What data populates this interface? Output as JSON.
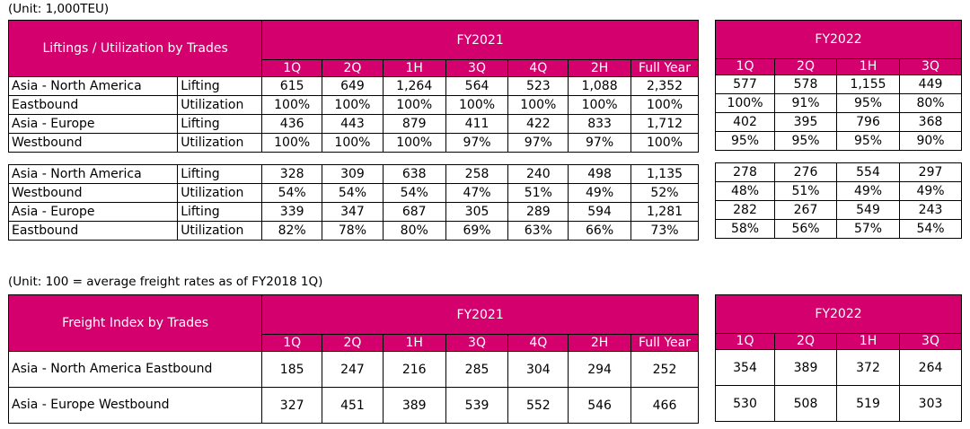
{
  "lift": {
    "unit": "(Unit: 1,000TEU)",
    "title": "Liftings / Utilization by Trades",
    "fy2021": "FY2021",
    "fy2022": "FY2022",
    "cols2021": [
      "1Q",
      "2Q",
      "1H",
      "3Q",
      "4Q",
      "2H",
      "Full Year"
    ],
    "cols2022": [
      "1Q",
      "2Q",
      "1H",
      "3Q"
    ],
    "rows": [
      {
        "trade": "Asia - North America",
        "metric": "Lifting",
        "v21": [
          "615",
          "649",
          "1,264",
          "564",
          "523",
          "1,088",
          "2,352"
        ],
        "v22": [
          "577",
          "578",
          "1,155",
          "449"
        ]
      },
      {
        "trade": "Eastbound",
        "metric": "Utilization",
        "v21": [
          "100%",
          "100%",
          "100%",
          "100%",
          "100%",
          "100%",
          "100%"
        ],
        "v22": [
          "100%",
          "91%",
          "95%",
          "80%"
        ]
      },
      {
        "trade": "Asia - Europe",
        "metric": "Lifting",
        "v21": [
          "436",
          "443",
          "879",
          "411",
          "422",
          "833",
          "1,712"
        ],
        "v22": [
          "402",
          "395",
          "796",
          "368"
        ]
      },
      {
        "trade": "Westbound",
        "metric": "Utilization",
        "v21": [
          "100%",
          "100%",
          "100%",
          "97%",
          "97%",
          "97%",
          "100%"
        ],
        "v22": [
          "95%",
          "95%",
          "95%",
          "90%"
        ]
      },
      {
        "trade": "Asia - North America",
        "metric": "Lifting",
        "v21": [
          "328",
          "309",
          "638",
          "258",
          "240",
          "498",
          "1,135"
        ],
        "v22": [
          "278",
          "276",
          "554",
          "297"
        ]
      },
      {
        "trade": "Westbound",
        "metric": "Utilization",
        "v21": [
          "54%",
          "54%",
          "54%",
          "47%",
          "51%",
          "49%",
          "52%"
        ],
        "v22": [
          "48%",
          "51%",
          "49%",
          "49%"
        ]
      },
      {
        "trade": "Asia - Europe",
        "metric": "Lifting",
        "v21": [
          "339",
          "347",
          "687",
          "305",
          "289",
          "594",
          "1,281"
        ],
        "v22": [
          "282",
          "267",
          "549",
          "243"
        ]
      },
      {
        "trade": "Eastbound",
        "metric": "Utilization",
        "v21": [
          "82%",
          "78%",
          "80%",
          "69%",
          "63%",
          "66%",
          "73%"
        ],
        "v22": [
          "58%",
          "56%",
          "57%",
          "54%"
        ]
      }
    ]
  },
  "freight": {
    "unit": "(Unit: 100 = average freight rates as of FY2018 1Q)",
    "title": "Freight Index by Trades",
    "fy2021": "FY2021",
    "fy2022": "FY2022",
    "cols2021": [
      "1Q",
      "2Q",
      "1H",
      "3Q",
      "4Q",
      "2H",
      "Full Year"
    ],
    "cols2022": [
      "1Q",
      "2Q",
      "1H",
      "3Q"
    ],
    "rows": [
      {
        "trade": "Asia - North America Eastbound",
        "v21": [
          "185",
          "247",
          "216",
          "285",
          "304",
          "294",
          "252"
        ],
        "v22": [
          "354",
          "389",
          "372",
          "264"
        ]
      },
      {
        "trade": "Asia - Europe Westbound",
        "v21": [
          "327",
          "451",
          "389",
          "539",
          "552",
          "546",
          "466"
        ],
        "v22": [
          "530",
          "508",
          "519",
          "303"
        ]
      }
    ]
  }
}
